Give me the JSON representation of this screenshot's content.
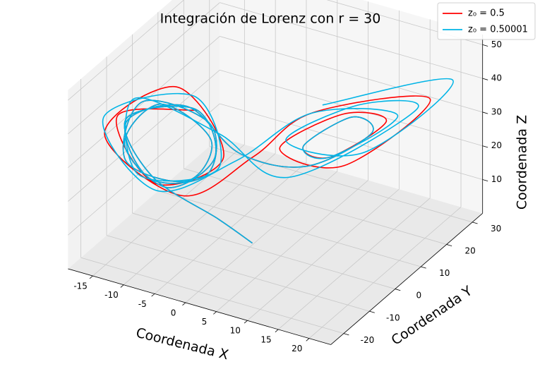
{
  "chart_data": {
    "type": "line3d",
    "title": "Integración de Lorenz con r = 30",
    "xlabel": "Coordenada X",
    "ylabel": "Coordenada Y",
    "zlabel": "Coordenada Z",
    "xlim": [
      -19,
      23.5
    ],
    "ylim": [
      -25,
      34
    ],
    "zlim": [
      0,
      53
    ],
    "xticks": [
      -15,
      -10,
      -5,
      0,
      5,
      10,
      15,
      20
    ],
    "yticks": [
      -20,
      -10,
      0,
      10,
      20,
      30
    ],
    "zticks": [
      10,
      20,
      30,
      40,
      50
    ],
    "grid": true,
    "legend": "upper right",
    "series": [
      {
        "name": "z₀ = 0.5",
        "color": "#ff0000",
        "x": [
          0,
          -3,
          -10,
          -15,
          -8,
          -4,
          -8,
          -14,
          -12,
          -5,
          -6,
          -13,
          -14,
          -6,
          -4,
          -10,
          -15,
          -9,
          -2,
          5,
          13,
          14,
          7,
          8,
          15,
          13,
          4,
          9,
          20,
          11,
          1,
          -6,
          -16,
          -11,
          -3,
          -9,
          -16,
          -8
        ],
        "y": [
          1,
          -5,
          -14,
          -12,
          -2,
          -4,
          -13,
          -15,
          -6,
          -3,
          -10,
          -17,
          -8,
          -1,
          -7,
          -15,
          -12,
          -3,
          1,
          10,
          16,
          6,
          4,
          12,
          17,
          5,
          2,
          15,
          22,
          -2,
          -1,
          -12,
          -18,
          -2,
          -3,
          -15,
          -13,
          -1
        ],
        "z": [
          0.5,
          10,
          25,
          38,
          38,
          27,
          22,
          33,
          40,
          31,
          23,
          30,
          41,
          34,
          24,
          25,
          37,
          39,
          26,
          20,
          30,
          42,
          31,
          23,
          34,
          43,
          30,
          19,
          40,
          47,
          28,
          20,
          37,
          43,
          27,
          24,
          39,
          37
        ]
      },
      {
        "name": "z₀ = 0.50001",
        "color": "#00b4e6",
        "x": [
          0,
          -3,
          -10,
          -15,
          -8,
          -4,
          -8,
          -14,
          -12,
          -5,
          -6,
          -13,
          -14,
          -6,
          -4,
          -10,
          -15,
          -9,
          -2,
          5,
          13,
          14,
          7,
          8,
          16,
          10,
          -1,
          -9,
          -17,
          -9,
          -3,
          -11,
          -15,
          -5,
          3,
          17,
          16,
          5,
          11,
          22,
          13
        ],
        "y": [
          1,
          -5,
          -14,
          -12,
          -2,
          -4,
          -13,
          -15,
          -6,
          -3,
          -10,
          -17,
          -8,
          -1,
          -7,
          -15,
          -12,
          -3,
          1,
          10,
          16,
          6,
          4,
          12,
          19,
          0,
          -3,
          -15,
          -16,
          0,
          -5,
          -17,
          -9,
          0,
          8,
          24,
          4,
          2,
          18,
          26,
          -3
        ],
        "z": [
          0.5,
          10,
          25,
          38,
          38,
          27,
          22,
          33,
          40,
          31,
          23,
          30,
          41,
          34,
          24,
          25,
          37,
          39,
          26,
          20,
          30,
          42,
          31,
          23,
          35,
          45,
          27,
          22,
          40,
          40,
          25,
          27,
          42,
          31,
          17,
          34,
          48,
          33,
          22,
          44,
          51
        ]
      }
    ]
  }
}
